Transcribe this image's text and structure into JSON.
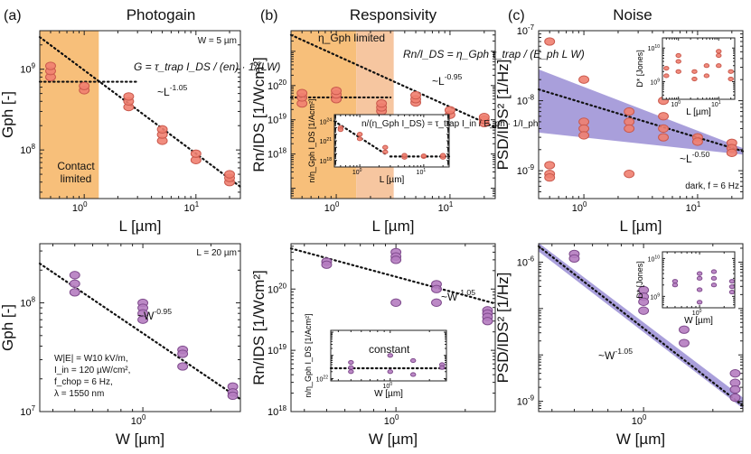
{
  "labels": {
    "panel_a": "(a)",
    "panel_b": "(b)",
    "panel_c": "(c)",
    "title_a": "Photogain",
    "title_b": "Responsivity",
    "title_c": "Noise"
  },
  "colors": {
    "salmon_fill": "#f08070",
    "salmon_stroke": "#c9584c",
    "purple_fill": "#b57cc0",
    "purple_stroke": "#7e4a8c",
    "contact_region": "#f7bf7a",
    "gph_region": "#f6c6a0",
    "noise_band": "#8c7fcf"
  },
  "chart_data": [
    {
      "id": "a_top",
      "type": "scatter",
      "xlabel": "L [µm]",
      "ylabel": "G_ph [-]",
      "xscale": "log",
      "yscale": "log",
      "xlim": [
        0.4,
        25
      ],
      "ylim": [
        25000000,
        3000000000
      ],
      "xticks": [
        "10^0",
        "10^1"
      ],
      "yticks": [
        "10^8",
        "10^9"
      ],
      "annotations": [
        "W = 5 µm",
        "~L^-1.05",
        "Contact limited",
        "G = τ_trap I_DS / (en) · 1/(LW)"
      ],
      "series": [
        {
          "x": [
            0.5,
            1,
            2.5,
            5,
            10,
            20
          ],
          "y": [
            [
              800000000,
              950000000,
              1100000000
            ],
            [
              550000000,
              620000000
            ],
            [
              340000000,
              400000000,
              460000000
            ],
            [
              130000000,
              155000000,
              180000000
            ],
            [
              75000000,
              90000000
            ],
            [
              40000000,
              45000000,
              50000000
            ]
          ]
        }
      ],
      "fits": [
        {
          "label": "~L^-1.05",
          "x": [
            0.4,
            25
          ],
          "y": [
            2500000000,
            35000000
          ]
        },
        {
          "x": [
            0.4,
            3
          ],
          "y": [
            700000000,
            700000000
          ]
        }
      ],
      "shaded_x": [
        0.4,
        1.35
      ]
    },
    {
      "id": "b_top",
      "type": "scatter",
      "xlabel": "L [µm]",
      "ylabel": "Rn/I_DS [1/Wcm²]",
      "xscale": "log",
      "yscale": "log",
      "xlim": [
        0.4,
        25
      ],
      "ylim": [
        5e+16,
        4e+21
      ],
      "xticks": [
        "10^0",
        "10^1"
      ],
      "yticks": [
        "10^18",
        "10^19",
        "10^20"
      ],
      "annotations": [
        "η_Gph limited",
        "~L^-0.95",
        "Rn/I_DS = η_Gph τ_trap / (E_ph L W)"
      ],
      "series": [
        {
          "x": [
            0.5,
            1,
            2.5,
            5,
            10,
            20
          ],
          "y": [
            [
              3e+19,
              4.5e+19,
              6e+19
            ],
            [
              4e+19,
              5.5e+19,
              7e+19
            ],
            [
              1.8e+19,
              2.3e+19,
              3e+19
            ],
            [
              3.2e+19,
              4e+19,
              5.2e+19
            ],
            [
              1.4e+19,
              1.9e+19
            ],
            [
              8e+18,
              1e+19,
              1.2e+19
            ]
          ]
        }
      ],
      "fits": [
        {
          "label": "~L^-0.95",
          "x": [
            0.4,
            25
          ],
          "y": [
            3e+21,
            6e+18
          ]
        },
        {
          "x": [
            0.4,
            3
          ],
          "y": [
            4.5e+19,
            4.5e+19
          ]
        }
      ],
      "shaded_x": [
        [
          0.4,
          1.5
        ],
        [
          1.5,
          3.2
        ]
      ],
      "inset": {
        "ylabel": "n/η_Gph I_DS [1/Acm²]",
        "xlabel": "L [µm]",
        "xscale": "log",
        "yscale": "log",
        "xlim": [
          0.4,
          25
        ],
        "ylim": [
          1e+17,
          1e+25
        ],
        "xticks": [
          "10^0",
          "10^1"
        ],
        "yticks": [
          "10^18",
          "10^21",
          "10^24"
        ],
        "formula": "n/(η_Gph I_DS) = τ_trap I_in / E_ph · 1/I_ph",
        "series": [
          {
            "x": [
              0.5,
              1,
              2.5,
              5,
              10,
              20
            ],
            "y": [
              [
                1e+23,
                5e+22
              ],
              [
                2e+21,
                1e+22
              ],
              [
                2e+19,
                1e+20
              ],
              [
                3e+18,
                6e+18
              ],
              [
                4e+18,
                5e+18
              ],
              [
                3e+18,
                6e+18
              ]
            ]
          }
        ],
        "fits": [
          {
            "x": [
              0.4,
              2.5
            ],
            "y": [
              1e+24,
              1e+19
            ]
          },
          {
            "x": [
              3,
              25
            ],
            "y": [
              4e+18,
              4e+18
            ]
          }
        ]
      }
    },
    {
      "id": "c_top",
      "type": "scatter",
      "xlabel": "L [µm]",
      "ylabel": "PSD/I_DS² [1/Hz]",
      "xscale": "log",
      "yscale": "log",
      "xlim": [
        0.4,
        25
      ],
      "ylim": [
        4e-10,
        1e-07
      ],
      "xticks": [
        "10^0",
        "10^1"
      ],
      "yticks": [
        "10^-9",
        "10^-8",
        "10^-7"
      ],
      "annotations": [
        "~L^-0.50",
        "dark, f = 6 Hz"
      ],
      "series": [
        {
          "x": [
            0.5,
            1,
            2.5,
            5,
            10,
            20
          ],
          "y": [
            [
              7e-08,
              1.2e-09,
              9e-10,
              8e-10
            ],
            [
              2e-08,
              5e-09,
              4e-09,
              3.2e-09
            ],
            [
              7e-09,
              5e-09,
              4e-09,
              9e-10
            ],
            [
              1e-08,
              6e-09,
              4e-09,
              3e-09
            ],
            [
              3e-09,
              2.6e-09
            ],
            [
              2.5e-09,
              2.1e-09,
              1.8e-09
            ]
          ]
        }
      ],
      "fits": [
        {
          "label": "~L^-0.50",
          "x": [
            0.4,
            25
          ],
          "y": [
            1.45e-08,
            1.9e-09
          ]
        }
      ],
      "band": {
        "x": [
          0.4,
          25
        ],
        "upper": [
          2.8e-08,
          2.1e-09
        ],
        "lower": [
          3.5e-09,
          1.7e-09
        ]
      },
      "inset": {
        "ylabel": "D* [Jones]",
        "xlabel": "L [µm]",
        "xscale": "log",
        "yscale": "log",
        "xlim": [
          0.4,
          25
        ],
        "ylim": [
          300000000.0,
          20000000000.0
        ],
        "xticks": [
          "10^0",
          "10^1"
        ],
        "yticks": [
          "10^9",
          "10^10"
        ],
        "series": [
          {
            "x": [
              0.5,
              1,
              2.5,
              5,
              10,
              20
            ],
            "y": [
              [
                1500000000.0,
                2500000000.0
              ],
              [
                2000000000.0,
                4000000000.0,
                6000000000.0
              ],
              [
                1200000000.0,
                2000000000.0
              ],
              [
                1500000000.0,
                3000000000.0
              ],
              [
                3000000000.0,
                6000000000.0,
                8000000000.0
              ],
              [
                1200000000.0,
                2000000000.0
              ]
            ]
          }
        ]
      }
    },
    {
      "id": "a_bottom",
      "type": "scatter",
      "xlabel": "W [µm]",
      "ylabel": "G_ph [-]",
      "xscale": "log",
      "yscale": "log",
      "xlim": [
        0.35,
        2.7
      ],
      "ylim": [
        10000000,
        350000000
      ],
      "xticks": [
        "10^0"
      ],
      "yticks": [
        "10^7",
        "10^8"
      ],
      "annotations": [
        "L = 20 µm",
        "~W^-0.95",
        "W|E| = W10 kV/m,",
        "I_in = 120 µW/cm²,",
        "f_chop = 6 Hz,",
        "λ = 1550 nm"
      ],
      "series": [
        {
          "x": [
            0.5,
            1,
            1.5,
            2.5
          ],
          "y": [
            [
              180000000,
              150000000,
              125000000
            ],
            [
              100000000,
              90000000,
              80000000,
              70000000
            ],
            [
              37000000,
              34000000,
              26000000
            ],
            [
              17000000,
              15000000,
              14000000
            ]
          ]
        }
      ],
      "fits": [
        {
          "label": "~W^-0.95",
          "x": [
            0.35,
            2.7
          ],
          "y": [
            230000000,
            13000000
          ]
        }
      ]
    },
    {
      "id": "b_bottom",
      "type": "scatter",
      "xlabel": "W [µm]",
      "ylabel": "Rn/I_DS [1/Wcm²]",
      "xscale": "log",
      "yscale": "log",
      "xlim": [
        0.35,
        2.7
      ],
      "ylim": [
        1e+18,
        5.5e+20
      ],
      "xticks": [
        "10^0"
      ],
      "yticks": [
        "10^18",
        "10^19",
        "10^20"
      ],
      "annotations": [
        "~W^-1.05",
        "constant"
      ],
      "series": [
        {
          "x": [
            0.5,
            1,
            1.5,
            2.5
          ],
          "y": [
            [
              2.8e+20,
              2.5e+20
            ],
            [
              4e+20,
              3.4e+20,
              3e+20,
              6e+19
            ],
            [
              1.2e+20,
              1e+20,
              6e+19
            ],
            [
              4.5e+19,
              4e+19,
              3.5e+19,
              3e+19
            ]
          ]
        }
      ],
      "fits": [
        {
          "label": "~W^-1.05",
          "x": [
            0.35,
            2.7
          ],
          "y": [
            4.6e+20,
            5.8e+19
          ]
        }
      ],
      "inset": {
        "ylabel": "n/η_Gph I_DS [1/Acm²]",
        "xlabel": "W [µm]",
        "xscale": "log",
        "yscale": "log",
        "xlim": [
          0.35,
          2.7
        ],
        "ylim": [
          8e+21,
          1.2e+24
        ],
        "xticks": [
          "10^0"
        ],
        "yticks": [
          "10^22"
        ],
        "annotations": [
          "constant"
        ],
        "series": [
          {
            "x": [
              0.5,
              1,
              1.5,
              2.5
            ],
            "y": [
              [
                5e+22,
                3e+22,
                2e+22
              ],
              [
                1e+23,
                2e+22
              ],
              [
                6e+22,
                1.5e+22
              ],
              [
                4e+22,
                3e+22
              ]
            ]
          }
        ],
        "fits": [
          {
            "x": [
              0.35,
              2.7
            ],
            "y": [
              2.8e+22,
              2.8e+22
            ]
          }
        ]
      }
    },
    {
      "id": "c_bottom",
      "type": "scatter",
      "xlabel": "W [µm]",
      "ylabel": "PSD/I_DS² [1/Hz]",
      "xscale": "log",
      "yscale": "log",
      "xlim": [
        0.35,
        2.7
      ],
      "ylim": [
        6e-10,
        2.5e-06
      ],
      "xticks": [
        "10^0"
      ],
      "yticks": [
        "10^-9",
        "10^-6"
      ],
      "annotations": [
        "~W^-1.05"
      ],
      "series": [
        {
          "x": [
            0.5,
            1,
            1.5,
            2.5
          ],
          "y": [
            [
              1.5e-06,
              1.2e-06
            ],
            [
              2.5e-07,
              1.8e-07,
              1.4e-07,
              9e-08
            ],
            [
              3.5e-08,
              1.8e-08
            ],
            [
              4e-09,
              2.5e-09,
              1.8e-09,
              1.2e-09
            ]
          ]
        }
      ],
      "fits": [
        {
          "label": "~W^-1.05",
          "x": [
            0.35,
            2.7
          ],
          "y": [
            2.2e-06,
            8e-10
          ]
        }
      ],
      "band": {
        "x": [
          0.35,
          2.7
        ],
        "upper": [
          2.6e-06,
          1.2e-09
        ],
        "lower": [
          1.7e-06,
          7e-10
        ]
      },
      "inset": {
        "ylabel": "D* [Jones]",
        "xlabel": "W [µm]",
        "xscale": "log",
        "yscale": "log",
        "xlim": [
          0.35,
          2.7
        ],
        "ylim": [
          500000000.0,
          15000000000.0
        ],
        "xticks": [
          "10^0"
        ],
        "yticks": [
          "10^9",
          "10^10"
        ],
        "series": [
          {
            "x": [
              0.5,
              1,
              1.5,
              2.5
            ],
            "y": [
              [
                2500000000.0,
                2000000000.0
              ],
              [
                4000000000.0,
                3000000000.0,
                1500000000.0,
                700000000.0
              ],
              [
                4500000000.0,
                3000000000.0,
                2000000000.0
              ],
              [
                2500000000.0,
                1800000000.0,
                1300000000.0
              ]
            ]
          }
        ]
      }
    }
  ]
}
